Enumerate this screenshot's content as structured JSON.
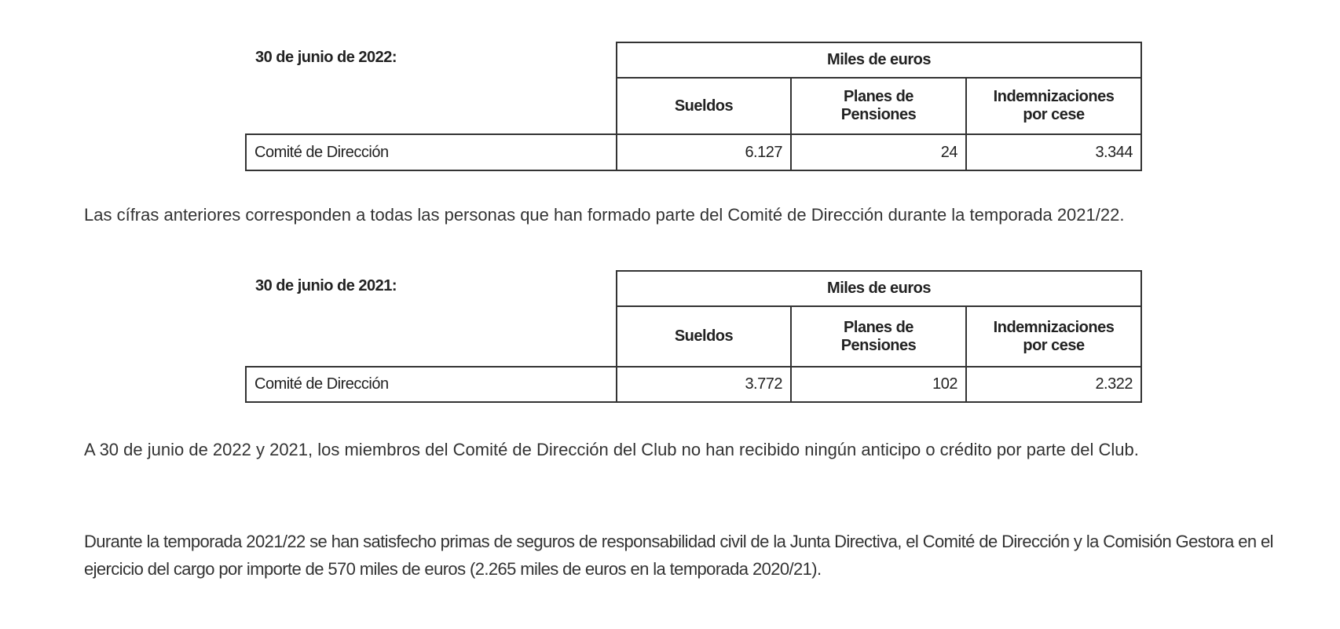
{
  "tables": [
    {
      "label": "30 de junio de 2022:",
      "group_header": "Miles de euros",
      "columns": [
        "Sueldos",
        "Planes de Pensiones",
        "Indemnizaciones por cese"
      ],
      "rows": [
        [
          "Comité de Dirección",
          "6.127",
          "24",
          "3.344"
        ]
      ]
    },
    {
      "label": "30 de junio de 2021:",
      "group_header": "Miles de euros",
      "columns": [
        "Sueldos",
        "Planes de Pensiones",
        "Indemnizaciones por cese"
      ],
      "rows": [
        [
          "Comité de Dirección",
          "3.772",
          "102",
          "2.322"
        ]
      ]
    }
  ],
  "paragraphs": [
    "Las cífras anteriores corresponden a todas las personas que han formado parte del Comité de Dirección durante la temporada 2021/22.",
    "A 30 de junio de 2022 y 2021, los miembros del Comité de Dirección del Club no han recibido ningún anticipo o crédito por parte del Club.",
    "Durante la temporada 2021/22 se han satisfecho primas de seguros de responsabilidad civil de la Junta Directiva, el Comité de Dirección y la Comisión Gestora en el ejercicio del cargo por importe de 570 miles de euros (2.265 miles de euros en la temporada 2020/21)."
  ]
}
